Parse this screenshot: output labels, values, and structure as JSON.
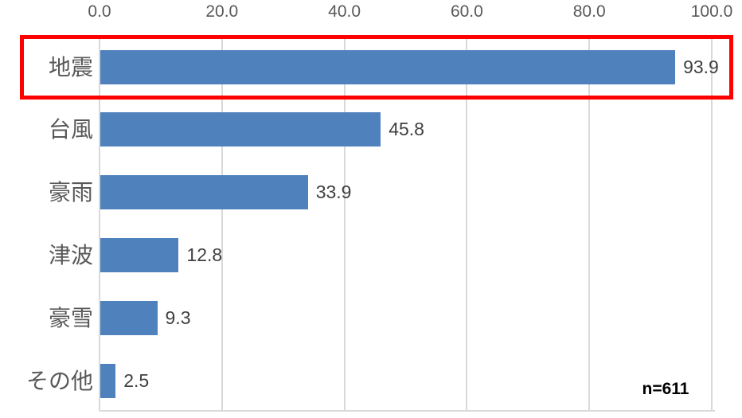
{
  "chart_data": {
    "type": "bar",
    "orientation": "horizontal",
    "categories": [
      "地震",
      "台風",
      "豪雨",
      "津波",
      "豪雪",
      "その他"
    ],
    "values": [
      93.9,
      45.8,
      33.9,
      12.8,
      9.3,
      2.5
    ],
    "value_labels": [
      "93.9",
      "45.8",
      "33.9",
      "12.8",
      "9.3",
      "2.5"
    ],
    "xlim": [
      0,
      100
    ],
    "ticks": [
      0,
      20,
      40,
      60,
      80,
      100
    ],
    "tick_labels": [
      "0.0",
      "20.0",
      "40.0",
      "60.0",
      "80.0",
      "100.0"
    ],
    "annotation": "n=611",
    "grid": "vertical-only",
    "legend": "none",
    "axis_position": "top",
    "highlight": {
      "category": "地震",
      "index": 0,
      "box_color": "#FF0000"
    },
    "colors": {
      "bar": "#4F81BD",
      "gridline": "#D9D9D9",
      "axis_text": "#595959",
      "category_text": "#595959",
      "value_text": "#404040",
      "background": "#FFFFFF"
    }
  }
}
